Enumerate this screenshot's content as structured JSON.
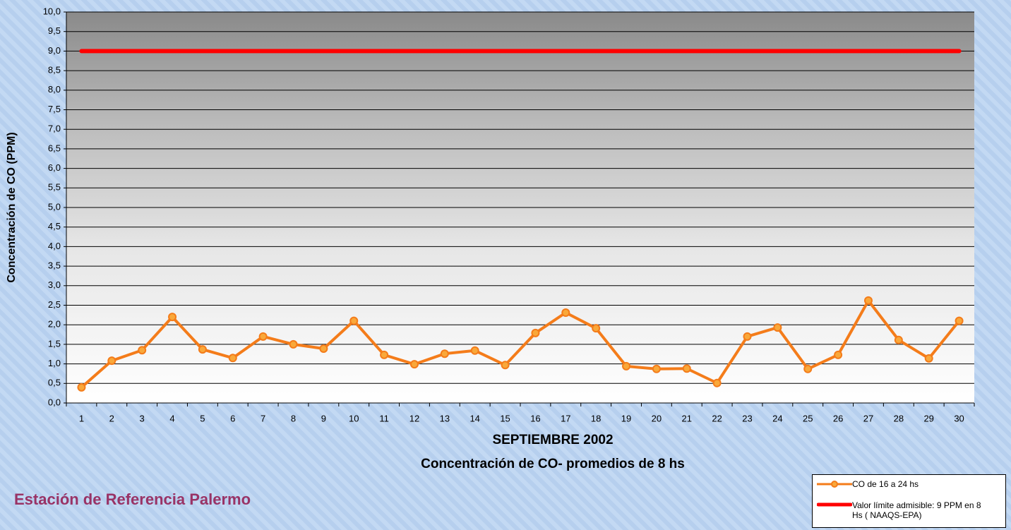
{
  "chart_data": {
    "type": "line",
    "title": "SEPTIEMBRE 2002",
    "subtitle": "Concentración de CO- promedios de 8 hs",
    "y_label": "Concentración de CO (PPM)",
    "footer": "Estación de Referencia Palermo",
    "categories": [
      "1",
      "2",
      "3",
      "4",
      "5",
      "6",
      "7",
      "8",
      "9",
      "10",
      "11",
      "12",
      "13",
      "14",
      "15",
      "16",
      "17",
      "18",
      "19",
      "20",
      "21",
      "22",
      "23",
      "24",
      "25",
      "26",
      "27",
      "28",
      "29",
      "30"
    ],
    "series": [
      {
        "name": "CO de 16 a 24 hs",
        "color": "#f47c1a",
        "values": [
          0.4,
          1.08,
          1.35,
          2.2,
          1.37,
          1.15,
          1.7,
          1.5,
          1.39,
          2.1,
          1.23,
          0.99,
          1.26,
          1.34,
          0.97,
          1.79,
          2.31,
          1.91,
          0.94,
          0.87,
          0.88,
          0.51,
          1.7,
          1.93,
          0.87,
          1.23,
          2.62,
          1.61,
          1.14,
          2.1
        ]
      },
      {
        "name": "Valor límite admisible: 9 PPM en 8 Hs ( NAAQS-EPA)",
        "color": "#ff0000",
        "values": [
          9,
          9,
          9,
          9,
          9,
          9,
          9,
          9,
          9,
          9,
          9,
          9,
          9,
          9,
          9,
          9,
          9,
          9,
          9,
          9,
          9,
          9,
          9,
          9,
          9,
          9,
          9,
          9,
          9,
          9
        ]
      }
    ],
    "ylim": [
      0,
      10
    ],
    "yticks": [
      {
        "value": 0,
        "label": "0,0"
      },
      {
        "value": 0.5,
        "label": "0,5"
      },
      {
        "value": 1,
        "label": "1,0"
      },
      {
        "value": 1.5,
        "label": "1,5"
      },
      {
        "value": 2,
        "label": "2,0"
      },
      {
        "value": 2.5,
        "label": "2,5"
      },
      {
        "value": 3,
        "label": "3,0"
      },
      {
        "value": 3.5,
        "label": "3,5"
      },
      {
        "value": 4,
        "label": "4,0"
      },
      {
        "value": 4.5,
        "label": "4,5"
      },
      {
        "value": 5,
        "label": "5,0"
      },
      {
        "value": 5.5,
        "label": "5,5"
      },
      {
        "value": 6,
        "label": "6,0"
      },
      {
        "value": 6.5,
        "label": "6,5"
      },
      {
        "value": 7,
        "label": "7,0"
      },
      {
        "value": 7.5,
        "label": "7,5"
      },
      {
        "value": 8,
        "label": "8,0"
      },
      {
        "value": 8.5,
        "label": "8,5"
      },
      {
        "value": 9,
        "label": "9,0"
      },
      {
        "value": 9.5,
        "label": "9,5"
      },
      {
        "value": 10,
        "label": "10,0"
      }
    ],
    "grid": true
  }
}
